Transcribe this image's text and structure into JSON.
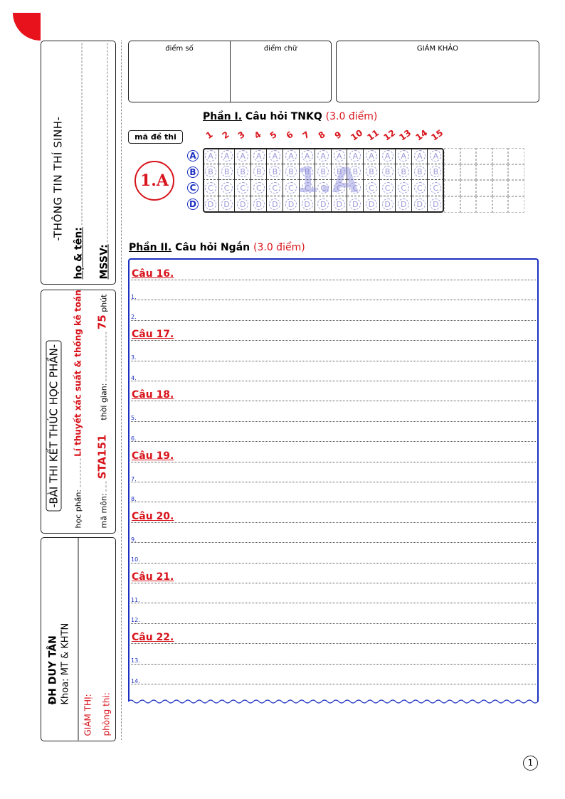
{
  "sidebar": {
    "student_info": {
      "title": "-THÔNG TIN THÍ SINH-",
      "name_label": "họ & tên:",
      "id_label": "MSSV:"
    },
    "exam_info": {
      "title": "-BÀI THI KẾT THÚC HỌC PHẦN-",
      "course_label": "học phần:",
      "course_value": "Lí thuyết xác suất & thống kê toán",
      "code_label": "mã môn:",
      "code_value": "STA151",
      "time_label": "thời gian:",
      "time_value": "75",
      "time_unit": "phút"
    },
    "school": {
      "name": "ĐH DUY TÂN",
      "faculty": "Khoa: MT & KHTN",
      "proctor_label": "GIÁM THỊ:",
      "room_label": "phòng thi:"
    }
  },
  "score_box": {
    "numeric_label": "điểm số",
    "text_label": "điểm chữ",
    "examiner_label": "GIÁM KHẢO"
  },
  "part1": {
    "title_underlined": "Phần I.",
    "title": "Câu hỏi TNKQ",
    "points": "(3.0 điểm)",
    "exam_code_label": "mã đề thi",
    "exam_code": "1.A",
    "watermark": "1.A",
    "questions": [
      "1",
      "2",
      "3",
      "4",
      "5",
      "6",
      "7",
      "8",
      "9",
      "10",
      "11",
      "12",
      "13",
      "14",
      "15"
    ],
    "options": [
      "A",
      "B",
      "C",
      "D"
    ]
  },
  "part2": {
    "title_underlined": "Phần II.",
    "title": "Câu hỏi Ngắn",
    "points": "(3.0 điểm)",
    "questions": [
      {
        "label": "Câu 16.",
        "lines": [
          "1.",
          "2."
        ]
      },
      {
        "label": "Câu 17.",
        "lines": [
          "3.",
          "4."
        ]
      },
      {
        "label": "Câu 18.",
        "lines": [
          "5.",
          "6."
        ]
      },
      {
        "label": "Câu 19.",
        "lines": [
          "7.",
          "8."
        ]
      },
      {
        "label": "Câu 20.",
        "lines": [
          "9.",
          "10."
        ]
      },
      {
        "label": "Câu 21.",
        "lines": [
          "11.",
          "12."
        ]
      },
      {
        "label": "Câu 22.",
        "lines": [
          "13.",
          "14."
        ]
      }
    ]
  },
  "page_number": "1",
  "colors": {
    "red": "#d8141c",
    "blue": "#1b2fc0",
    "bubble": "#9a9ad8"
  }
}
